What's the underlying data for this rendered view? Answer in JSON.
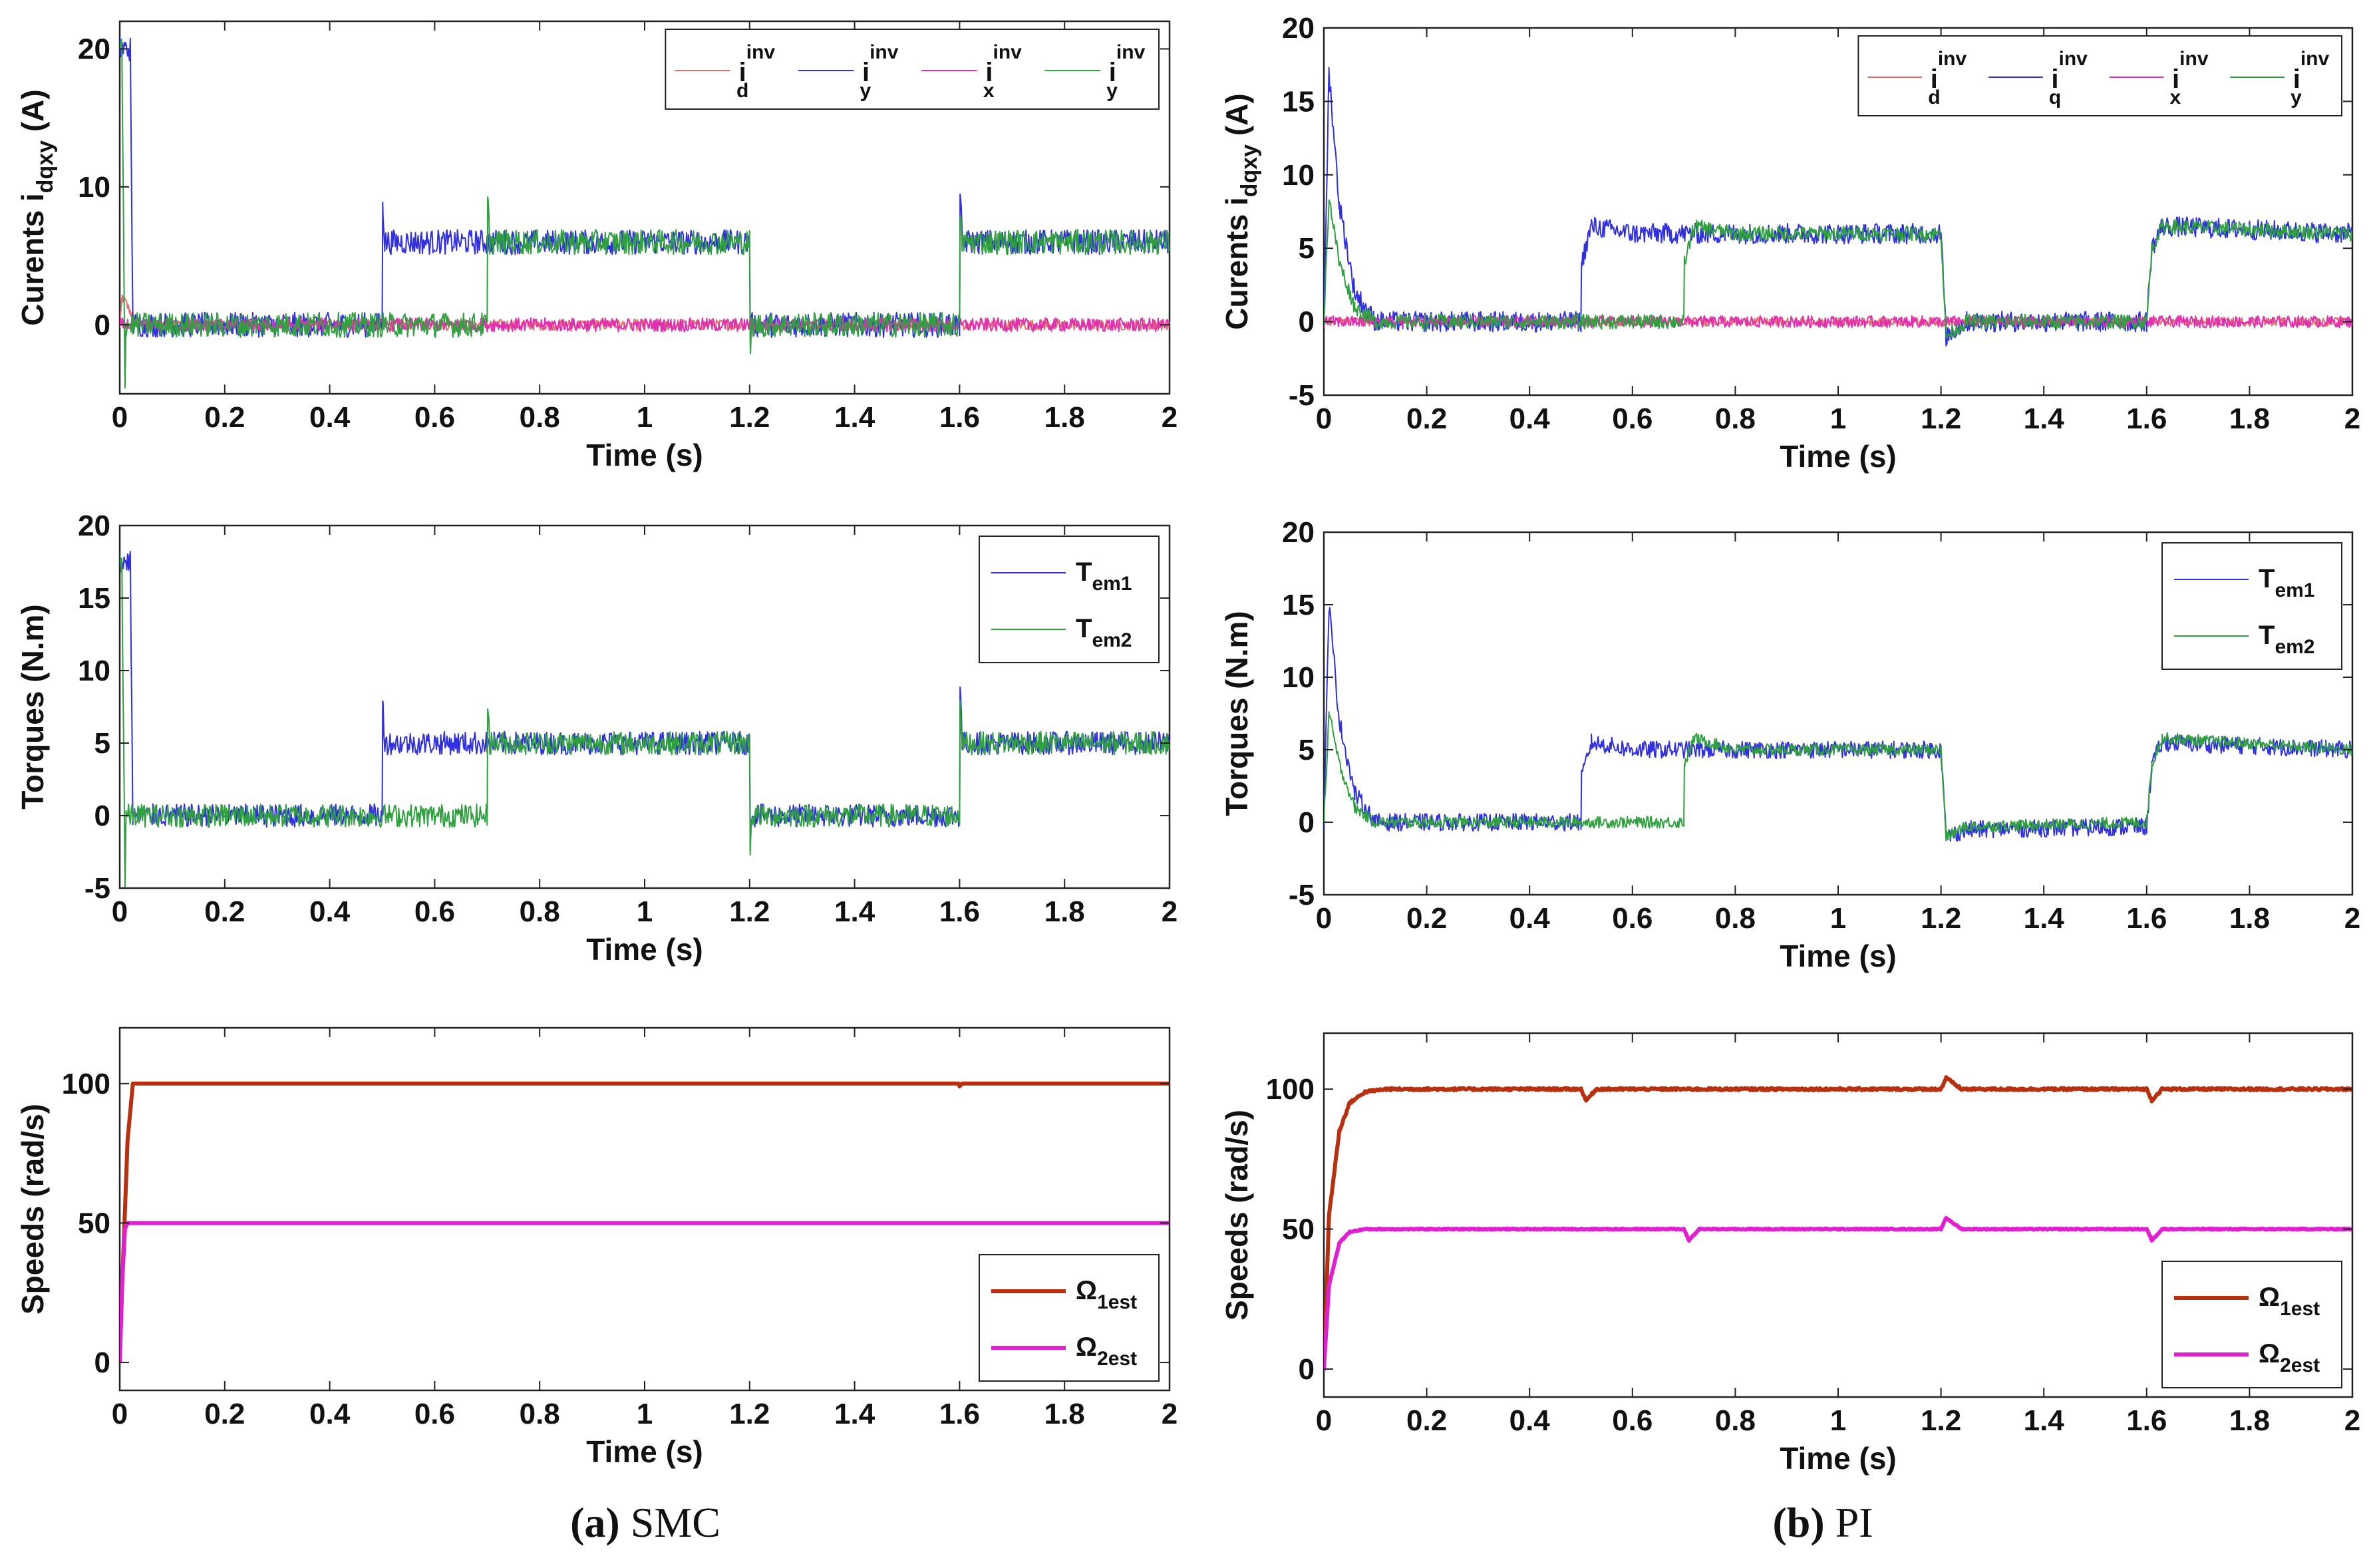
{
  "chart_data": [
    {
      "id": "a1",
      "type": "line",
      "panel": "a",
      "xlabel": "Time (s)",
      "ylabel": "Curents i",
      "ylabel_sub": "dqxy",
      "ylabel_tail": " (A)",
      "xlim": [
        0,
        2
      ],
      "ylim": [
        -5,
        22
      ],
      "xticks": [
        0,
        0.2,
        0.4,
        0.6,
        0.8,
        1,
        1.2,
        1.4,
        1.6,
        1.8,
        2
      ],
      "xtick_labels": [
        "0",
        "0.2",
        "0.4",
        "0.6",
        "0.8",
        "1",
        "1.2",
        "1.4",
        "1.6",
        "1.8",
        "2"
      ],
      "yticks": [
        0,
        10,
        20
      ],
      "ytick_labels": [
        "0",
        "10",
        "20"
      ],
      "legend": "top-right",
      "legend_layout": "row",
      "series": [
        {
          "name": "i_d^inv",
          "label": "i",
          "sub": "d",
          "sup": "inv",
          "color": "#e07070",
          "width": 2,
          "x": [
            0,
            0.005,
            0.02,
            0.03,
            2
          ],
          "y": [
            0,
            2,
            1,
            0,
            0
          ],
          "noise": 0.4
        },
        {
          "name": "i_y^inv (blue)",
          "label": "i",
          "sub": "y",
          "sup": "inv",
          "color": "#3030e0",
          "width": 2,
          "x": [
            0,
            0.004,
            0.02,
            0.025,
            0.5,
            0.501,
            0.505,
            0.7,
            0.7,
            1.2,
            1.201,
            1.6,
            1.601,
            1.605,
            2
          ],
          "y": [
            20,
            20,
            20,
            0,
            0,
            9,
            6,
            6,
            6,
            6,
            0,
            0,
            10,
            6,
            6
          ],
          "noise": 0.9
        },
        {
          "name": "i_x^inv",
          "label": "i",
          "sub": "x",
          "sup": "inv",
          "color": "#e030b0",
          "width": 2,
          "x": [
            0,
            2
          ],
          "y": [
            0,
            0
          ],
          "noise": 0.5
        },
        {
          "name": "i_y^inv (green)",
          "label": "i",
          "sub": "y",
          "sup": "inv",
          "color": "#30a040",
          "width": 2,
          "x": [
            0,
            0.004,
            0.01,
            0.012,
            0.7,
            0.701,
            0.705,
            1.2,
            1.201,
            1.205,
            1.6,
            1.601,
            1.605,
            2
          ],
          "y": [
            20,
            20,
            -4,
            0,
            0,
            9,
            6,
            6,
            -2,
            0,
            0,
            8,
            6,
            6
          ],
          "noise": 0.9
        }
      ]
    },
    {
      "id": "b1",
      "type": "line",
      "panel": "b",
      "xlabel": "Time (s)",
      "ylabel": "Curents i",
      "ylabel_sub": "dqxy",
      "ylabel_tail": " (A)",
      "xlim": [
        0,
        2
      ],
      "ylim": [
        -5,
        20
      ],
      "xticks": [
        0,
        0.2,
        0.4,
        0.6,
        0.8,
        1,
        1.2,
        1.4,
        1.6,
        1.8,
        2
      ],
      "xtick_labels": [
        "0",
        "0.2",
        "0.4",
        "0.6",
        "0.8",
        "1",
        "1.2",
        "1.4",
        "1.6",
        "1.8",
        "2"
      ],
      "yticks": [
        -5,
        0,
        5,
        10,
        15,
        20
      ],
      "ytick_labels": [
        "-5",
        "0",
        "5",
        "10",
        "15",
        "20"
      ],
      "legend": "top-right",
      "legend_layout": "row",
      "series": [
        {
          "name": "i_d^inv",
          "label": "i",
          "sub": "d",
          "sup": "inv",
          "color": "#e07070",
          "width": 2,
          "x": [
            0,
            2
          ],
          "y": [
            0,
            0
          ],
          "noise": 0.3
        },
        {
          "name": "i_q^inv",
          "label": "i",
          "sub": "q",
          "sup": "inv",
          "color": "#3030e0",
          "width": 2,
          "x": [
            0,
            0.01,
            0.03,
            0.06,
            0.1,
            0.5,
            0.501,
            0.52,
            0.6,
            1.2,
            1.21,
            1.25,
            1.6,
            1.61,
            1.63,
            2
          ],
          "y": [
            0,
            17,
            8,
            2,
            0,
            0,
            4,
            6.5,
            6,
            6,
            -1,
            0,
            0,
            5,
            6.5,
            6
          ],
          "noise": 0.7
        },
        {
          "name": "i_x^inv",
          "label": "i",
          "sub": "x",
          "sup": "inv",
          "color": "#e030b0",
          "width": 2,
          "x": [
            0,
            2
          ],
          "y": [
            0,
            0
          ],
          "noise": 0.4
        },
        {
          "name": "i_y^inv",
          "label": "i",
          "sub": "y",
          "sup": "inv",
          "color": "#30a040",
          "width": 2,
          "x": [
            0,
            0.01,
            0.03,
            0.06,
            0.1,
            0.7,
            0.701,
            0.72,
            0.8,
            1.2,
            1.21,
            1.25,
            1.6,
            1.61,
            1.63,
            2
          ],
          "y": [
            0,
            8.5,
            4,
            1,
            0,
            0,
            4,
            6.5,
            6,
            6,
            -1,
            0,
            0,
            5,
            6.5,
            6
          ],
          "noise": 0.5
        }
      ]
    },
    {
      "id": "a2",
      "type": "line",
      "panel": "a",
      "xlabel": "Time (s)",
      "ylabel": "Torques (N.m)",
      "xlim": [
        0,
        2
      ],
      "ylim": [
        -5,
        20
      ],
      "xticks": [
        0,
        0.2,
        0.4,
        0.6,
        0.8,
        1,
        1.2,
        1.4,
        1.6,
        1.8,
        2
      ],
      "xtick_labels": [
        "0",
        "0.2",
        "0.4",
        "0.6",
        "0.8",
        "1",
        "1.2",
        "1.4",
        "1.6",
        "1.8",
        "2"
      ],
      "yticks": [
        -5,
        0,
        5,
        10,
        15,
        20
      ],
      "ytick_labels": [
        "-5",
        "0",
        "5",
        "10",
        "15",
        "20"
      ],
      "legend": "top-right",
      "legend_layout": "column",
      "series": [
        {
          "name": "T_em1",
          "label": "T",
          "sub": "em1",
          "sup": "",
          "color": "#3030e0",
          "width": 2,
          "x": [
            0,
            0.004,
            0.02,
            0.025,
            0.5,
            0.501,
            0.505,
            0.7,
            0.7,
            1.2,
            1.201,
            1.6,
            1.601,
            1.605,
            2
          ],
          "y": [
            17.5,
            17.5,
            17.5,
            0,
            0,
            8,
            5,
            5,
            5,
            5,
            0,
            0,
            9,
            5,
            5
          ],
          "noise": 0.8
        },
        {
          "name": "T_em2",
          "label": "T",
          "sub": "em2",
          "sup": "",
          "color": "#30a040",
          "width": 2,
          "x": [
            0,
            0.004,
            0.01,
            0.012,
            0.7,
            0.701,
            0.705,
            1.2,
            1.201,
            1.205,
            1.6,
            1.601,
            1.605,
            2
          ],
          "y": [
            17.5,
            17.5,
            -4.5,
            0,
            0,
            8,
            5,
            5,
            -2,
            0,
            0,
            8,
            5,
            5
          ],
          "noise": 0.8
        }
      ]
    },
    {
      "id": "b2",
      "type": "line",
      "panel": "b",
      "xlabel": "Time (s)",
      "ylabel": "Torques (N.m)",
      "xlim": [
        0,
        2
      ],
      "ylim": [
        -5,
        20
      ],
      "xticks": [
        0,
        0.2,
        0.4,
        0.6,
        0.8,
        1,
        1.2,
        1.4,
        1.6,
        1.8,
        2
      ],
      "xtick_labels": [
        "0",
        "0.2",
        "0.4",
        "0.6",
        "0.8",
        "1",
        "1.2",
        "1.4",
        "1.6",
        "1.8",
        "2"
      ],
      "yticks": [
        -5,
        0,
        5,
        10,
        15,
        20
      ],
      "ytick_labels": [
        "-5",
        "0",
        "5",
        "10",
        "15",
        "20"
      ],
      "legend": "top-right",
      "legend_layout": "column",
      "series": [
        {
          "name": "T_em1",
          "label": "T",
          "sub": "em1",
          "sup": "",
          "color": "#3030e0",
          "width": 2,
          "x": [
            0,
            0.01,
            0.03,
            0.06,
            0.1,
            0.5,
            0.501,
            0.52,
            0.6,
            1.2,
            1.21,
            1.25,
            1.6,
            1.61,
            1.63,
            2
          ],
          "y": [
            0,
            15,
            7,
            2,
            0,
            0,
            3,
            5.5,
            5,
            5,
            -1,
            -0.5,
            -0.3,
            4,
            5.5,
            5
          ],
          "noise": 0.6
        },
        {
          "name": "T_em2",
          "label": "T",
          "sub": "em2",
          "sup": "",
          "color": "#30a040",
          "width": 2,
          "x": [
            0,
            0.01,
            0.03,
            0.06,
            0.1,
            0.7,
            0.701,
            0.72,
            0.8,
            1.2,
            1.21,
            1.25,
            1.6,
            1.61,
            1.63,
            2
          ],
          "y": [
            0,
            7.5,
            4,
            1,
            0,
            0,
            4,
            5.8,
            5,
            5,
            -1,
            -0.3,
            0,
            4,
            5.8,
            5
          ],
          "noise": 0.4
        }
      ]
    },
    {
      "id": "a3",
      "type": "line",
      "panel": "a",
      "xlabel": "Time (s)",
      "ylabel": "Speeds  (rad/s)",
      "xlim": [
        0,
        2
      ],
      "ylim": [
        -10,
        120
      ],
      "xticks": [
        0,
        0.2,
        0.4,
        0.6,
        0.8,
        1,
        1.2,
        1.4,
        1.6,
        1.8,
        2
      ],
      "xtick_labels": [
        "0",
        "0.2",
        "0.4",
        "0.6",
        "0.8",
        "1",
        "1.2",
        "1.4",
        "1.6",
        "1.8",
        "2"
      ],
      "yticks": [
        0,
        50,
        100
      ],
      "ytick_labels": [
        "0",
        "50",
        "100"
      ],
      "legend": "bottom-right",
      "legend_layout": "column",
      "series": [
        {
          "name": "Ω_1est",
          "label": "Ω",
          "sub": "1est",
          "sup": "",
          "color": "#b83010",
          "width": 6,
          "x": [
            0,
            0.005,
            0.015,
            0.025,
            0.03,
            1.598,
            1.6,
            1.605,
            2
          ],
          "y": [
            0,
            30,
            80,
            100,
            100,
            100,
            99,
            100,
            100
          ],
          "noise": 0
        },
        {
          "name": "Ω_2est",
          "label": "Ω",
          "sub": "2est",
          "sup": "",
          "color": "#e020d0",
          "width": 6,
          "x": [
            0,
            0.005,
            0.01,
            0.015,
            2
          ],
          "y": [
            0,
            30,
            48,
            50,
            50
          ],
          "noise": 0
        }
      ]
    },
    {
      "id": "b3",
      "type": "line",
      "panel": "b",
      "xlabel": "Time (s)",
      "ylabel": "Speeds  (rad/s)",
      "xlim": [
        0,
        2
      ],
      "ylim": [
        -10,
        120
      ],
      "xticks": [
        0,
        0.2,
        0.4,
        0.6,
        0.8,
        1,
        1.2,
        1.4,
        1.6,
        1.8,
        2
      ],
      "xtick_labels": [
        "0",
        "0.2",
        "0.4",
        "0.6",
        "0.8",
        "1",
        "1.2",
        "1.4",
        "1.6",
        "1.8",
        "2"
      ],
      "yticks": [
        0,
        50,
        100
      ],
      "ytick_labels": [
        "0",
        "50",
        "100"
      ],
      "legend": "bottom-right",
      "legend_layout": "column",
      "series": [
        {
          "name": "Ω_1est",
          "label": "Ω",
          "sub": "1est",
          "sup": "",
          "color": "#b83010",
          "width": 6,
          "x": [
            0,
            0.01,
            0.03,
            0.05,
            0.08,
            0.12,
            0.5,
            0.51,
            0.53,
            1.2,
            1.21,
            1.24,
            1.6,
            1.61,
            1.63,
            2
          ],
          "y": [
            0,
            55,
            85,
            95,
            99,
            100,
            100,
            96,
            100,
            100,
            104,
            100,
            100,
            96,
            100,
            100
          ],
          "noise": 0.4
        },
        {
          "name": "Ω_2est",
          "label": "Ω",
          "sub": "2est",
          "sup": "",
          "color": "#e020d0",
          "width": 6,
          "x": [
            0,
            0.01,
            0.03,
            0.05,
            0.08,
            0.7,
            0.71,
            0.73,
            1.2,
            1.21,
            1.24,
            1.6,
            1.61,
            1.63,
            2
          ],
          "y": [
            0,
            30,
            45,
            49,
            50,
            50,
            46,
            50,
            50,
            54,
            50,
            50,
            46,
            50,
            50
          ],
          "noise": 0.2
        }
      ]
    }
  ],
  "captions": [
    {
      "bold": "(a)",
      "text": " SMC"
    },
    {
      "bold": "(b)",
      "text": " PI"
    }
  ]
}
